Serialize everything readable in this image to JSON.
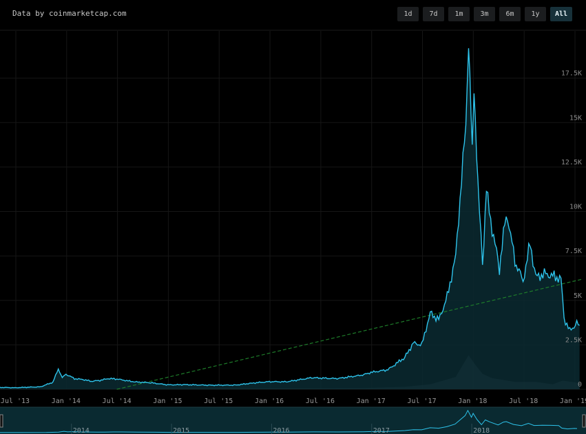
{
  "header": {
    "credit": "Data by coinmarketcap.com",
    "ranges": [
      "1d",
      "7d",
      "1m",
      "3m",
      "6m",
      "1y",
      "All"
    ],
    "active_range": "All"
  },
  "colors": {
    "price_line": "#2ec4ec",
    "area_fill": "#0b2a31",
    "trend_line": "#1e7d2a",
    "volume": "#3a4a50",
    "grid": "#161616"
  },
  "chart_data": {
    "type": "line",
    "title": "",
    "x_labels": [
      "Jul '13",
      "Jan '14",
      "Jul '14",
      "Jan '15",
      "Jul '15",
      "Jan '16",
      "Jul '16",
      "Jan '17",
      "Jul '17",
      "Jan '18",
      "Jul '18",
      "Jan '19"
    ],
    "y_ticks": [
      "0",
      "2.5K",
      "5K",
      "7.5K",
      "10K",
      "12.5K",
      "15K",
      "17.5K"
    ],
    "ylim": [
      0,
      20000
    ],
    "grid": true,
    "series": [
      {
        "x": [
          "2013-04",
          "2013-07",
          "2013-10",
          "2013-11-15",
          "2013-12-04",
          "2013-12-18",
          "2014-01",
          "2014-02",
          "2014-03",
          "2014-04",
          "2014-05",
          "2014-06",
          "2014-07",
          "2014-09",
          "2014-11",
          "2015-01",
          "2015-03",
          "2015-06",
          "2015-09",
          "2015-11",
          "2016-01",
          "2016-03",
          "2016-06",
          "2016-09",
          "2016-12",
          "2017-01",
          "2017-03",
          "2017-05",
          "2017-06",
          "2017-07",
          "2017-08",
          "2017-09",
          "2017-10",
          "2017-11",
          "2017-12-07",
          "2017-12-17",
          "2017-12-30",
          "2018-01-06",
          "2018-01-20",
          "2018-02-06",
          "2018-02-20",
          "2018-03-05",
          "2018-04-06",
          "2018-04-25",
          "2018-05-05",
          "2018-06-01",
          "2018-06-30",
          "2018-07-25",
          "2018-08-15",
          "2018-09-15",
          "2018-10-15",
          "2018-11-14",
          "2018-11-25",
          "2018-12-15",
          "2019-01-10",
          "2019-01-20"
        ],
        "values": [
          120,
          90,
          140,
          400,
          1150,
          650,
          850,
          600,
          550,
          450,
          500,
          600,
          580,
          420,
          370,
          250,
          260,
          230,
          235,
          350,
          430,
          420,
          650,
          600,
          800,
          950,
          1100,
          1800,
          2600,
          2500,
          4300,
          3900,
          5200,
          7500,
          15000,
          19500,
          13500,
          17000,
          11500,
          7000,
          11200,
          9500,
          6800,
          9300,
          9700,
          7200,
          6100,
          8200,
          6300,
          6500,
          6400,
          6200,
          4000,
          3300,
          3700,
          3600
        ]
      },
      {
        "name": "",
        "x": [
          "2014-07",
          "2019-02"
        ],
        "values": [
          0,
          6200
        ]
      }
    ],
    "volume": {
      "x": [
        "2013-04",
        "2016-12",
        "2017-05",
        "2017-08",
        "2017-11",
        "2017-12-17",
        "2018-01-10",
        "2018-02-06",
        "2018-03-10",
        "2018-06-01",
        "2018-08-15",
        "2018-10-15",
        "2018-11-20",
        "2019-01-20"
      ],
      "values": [
        0,
        0.02,
        0.04,
        0.08,
        0.2,
        0.55,
        0.4,
        0.25,
        0.18,
        0.12,
        0.12,
        0.08,
        0.14,
        0.1
      ]
    },
    "navigator_labels": [
      "2014",
      "2015",
      "2016",
      "2017",
      "2018"
    ]
  }
}
